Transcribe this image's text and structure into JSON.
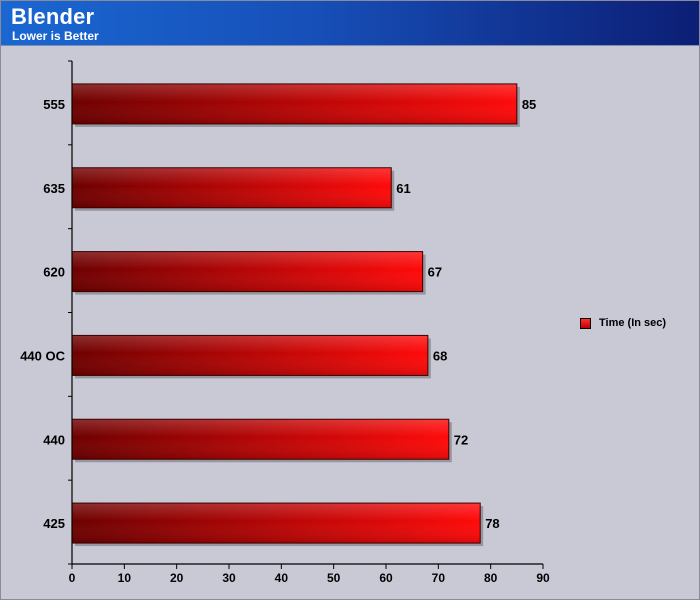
{
  "header": {
    "title": "Blender",
    "subtitle": "Lower is Better"
  },
  "legend": {
    "label": "Time (In sec)"
  },
  "colors": {
    "header_start": "#1a67d2",
    "header_end": "#0c1e75",
    "plot_background": "#c9c9d5",
    "bar_dark": "#6e0000",
    "bar_light": "#ff0a0a"
  },
  "chart_data": {
    "type": "bar",
    "orientation": "horizontal",
    "title": "Blender",
    "subtitle": "Lower is Better",
    "categories": [
      "555",
      "635",
      "620",
      "440 OC",
      "440",
      "425"
    ],
    "series": [
      {
        "name": "Time (In sec)",
        "values": [
          85,
          61,
          67,
          68,
          72,
          78
        ]
      }
    ],
    "xlim": [
      0,
      90
    ],
    "xticks": [
      0,
      10,
      20,
      30,
      40,
      50,
      60,
      70,
      80,
      90
    ],
    "grid": false,
    "legend_position": "right",
    "data_labels": true
  }
}
